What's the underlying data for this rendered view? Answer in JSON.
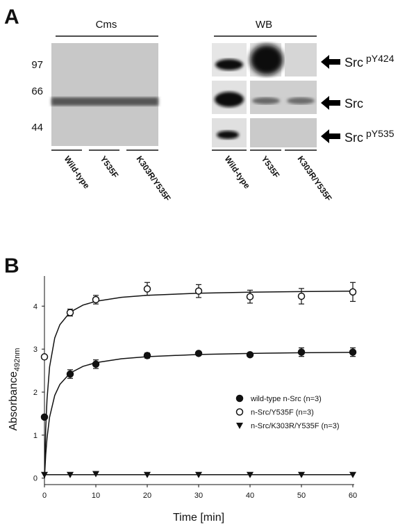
{
  "panel_a": {
    "label": "A",
    "cms": {
      "title": "Cms",
      "mw_markers": [
        "97",
        "66",
        "44"
      ]
    },
    "wb": {
      "title": "WB",
      "rows": [
        {
          "name": "Src",
          "sup": "pY424"
        },
        {
          "name": "Src"
        },
        {
          "name": "Src",
          "sup": "pY535"
        }
      ]
    },
    "lanes": [
      "Wild-type",
      "Y535F",
      "K303R/Y535F"
    ]
  },
  "chart_data": {
    "type": "scatter",
    "panel_label": "B",
    "xlabel": "Time [min]",
    "ylabel": "Absorbance",
    "ylabel_sub": "492nm",
    "xlim": [
      0,
      60
    ],
    "ylim": [
      -0.15,
      4.7
    ],
    "xticks": [
      0,
      10,
      20,
      30,
      40,
      50,
      60
    ],
    "yticks": [
      0,
      1,
      2,
      3,
      4
    ],
    "legend": "lower right",
    "x": [
      0,
      5,
      10,
      20,
      30,
      40,
      50,
      60
    ],
    "series": [
      {
        "name": "wild-type n-Src (n=3)",
        "color": "#111111",
        "marker": "filled-circle",
        "values": [
          1.42,
          2.42,
          2.65,
          2.85,
          2.9,
          2.87,
          2.93,
          2.93
        ],
        "errors": [
          0.03,
          0.1,
          0.1,
          0.06,
          0.04,
          0.04,
          0.1,
          0.1
        ],
        "fit": {
          "x": [
            0,
            0.25,
            0.5,
            1,
            2,
            3,
            5,
            7.5,
            10,
            15,
            20,
            30,
            40,
            50,
            60
          ],
          "y": [
            0,
            0.552,
            0.931,
            1.419,
            1.923,
            2.18,
            2.443,
            2.599,
            2.685,
            2.776,
            2.825,
            2.875,
            2.9,
            2.916,
            2.926
          ]
        }
      },
      {
        "name": "n-Src/Y535F (n=3)",
        "color": "#111111",
        "marker": "open-circle",
        "values": [
          2.82,
          3.85,
          4.15,
          4.4,
          4.35,
          4.22,
          4.23,
          4.33
        ],
        "errors": [
          0.03,
          0.08,
          0.1,
          0.15,
          0.15,
          0.15,
          0.18,
          0.22
        ],
        "fit": {
          "x": [
            0,
            0.25,
            0.5,
            1,
            2,
            3,
            5,
            7.5,
            10,
            15,
            20,
            30,
            40,
            50,
            60
          ],
          "y": [
            0,
            1.158,
            1.833,
            2.588,
            3.259,
            3.568,
            3.86,
            4.024,
            4.112,
            4.204,
            4.251,
            4.3,
            4.324,
            4.339,
            4.349
          ]
        }
      },
      {
        "name": "n-Src/K303R/Y535F (n=3)",
        "color": "#111111",
        "marker": "triangle-down",
        "values": [
          0.08,
          0.08,
          0.1,
          0.08,
          0.08,
          0.08,
          0.08,
          0.08
        ],
        "fit": {
          "x": [
            0,
            60
          ],
          "y": [
            0.08,
            0.08
          ]
        }
      }
    ]
  }
}
